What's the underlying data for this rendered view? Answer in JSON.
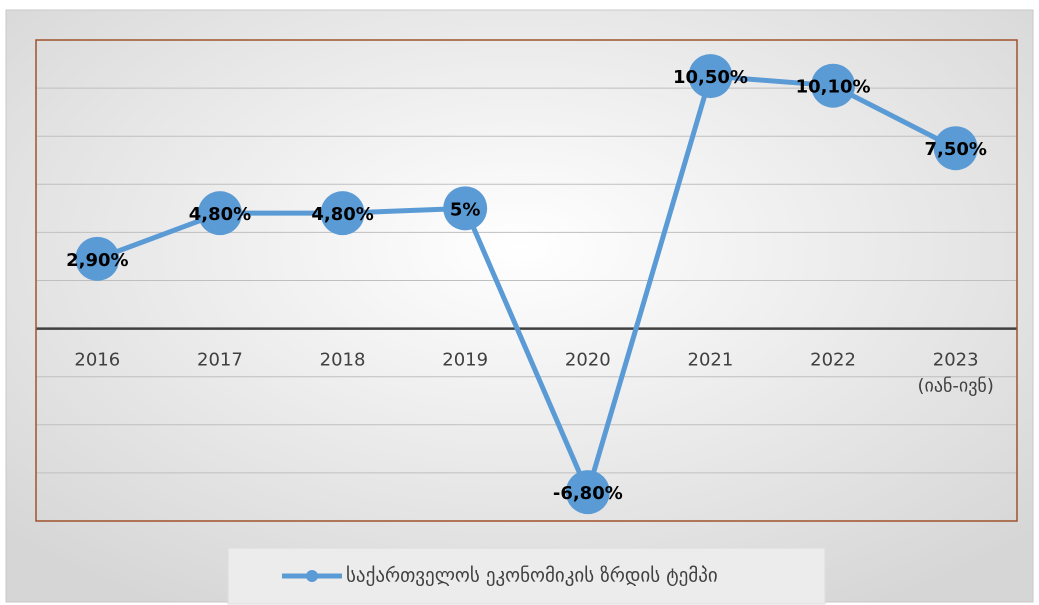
{
  "chart_data": {
    "type": "line",
    "categories": [
      "2016",
      "2017",
      "2018",
      "2019",
      "2020",
      "2021",
      "2022",
      "2023\n(იან-ივნ)"
    ],
    "series": [
      {
        "name": "საქართველოს ეკონომიკის ზრდის ტემპი",
        "color": "#5b9bd5",
        "values": [
          2.9,
          4.8,
          4.8,
          5,
          -6.8,
          10.5,
          10.1,
          7.5
        ],
        "value_labels": [
          "2,90%",
          "4,80%",
          "4,80%",
          "5%",
          "-6,80%",
          "10,50%",
          "10,10%",
          "7,50%"
        ]
      }
    ],
    "ylim": [
      -8,
      12
    ],
    "yticks": [
      -8,
      -6,
      -4,
      -2,
      0,
      2,
      4,
      6,
      8,
      10,
      12
    ],
    "grid": true,
    "legend": "bottom"
  }
}
